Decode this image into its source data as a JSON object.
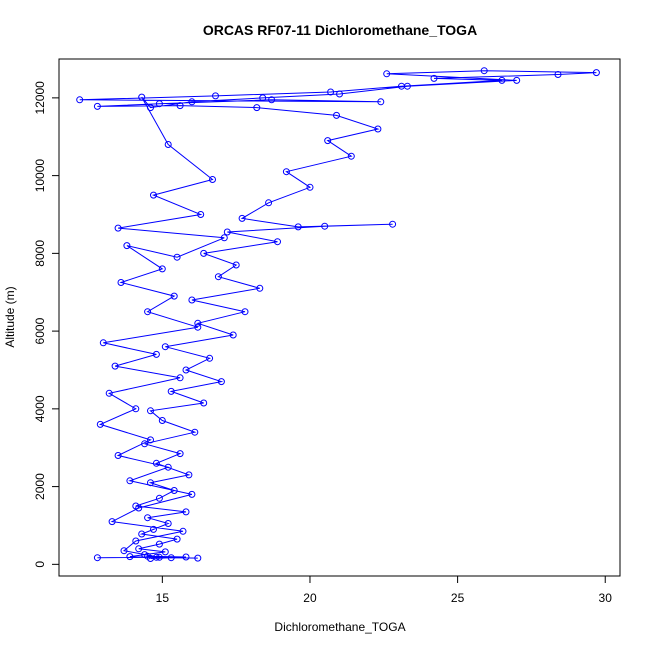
{
  "chart_data": {
    "type": "scatter",
    "title": "ORCAS RF07-11 Dichloromethane_TOGA",
    "xlabel": "Dichloromethane_TOGA",
    "ylabel": "Altitude (m)",
    "xlim": [
      11.5,
      30.5
    ],
    "ylim": [
      -300,
      13000
    ],
    "xticks": [
      15,
      20,
      25,
      30
    ],
    "yticks": [
      0,
      2000,
      4000,
      6000,
      8000,
      10000,
      12000
    ],
    "grid": false,
    "legend": "none",
    "marker": "open-circle",
    "connected": true,
    "color": "#0000ff",
    "series": [
      {
        "name": "Dichloromethane_TOGA",
        "points": [
          [
            14.6,
            150
          ],
          [
            15.3,
            170
          ],
          [
            16.2,
            160
          ],
          [
            14.8,
            180
          ],
          [
            13.9,
            200
          ],
          [
            14.4,
            250
          ],
          [
            15.1,
            320
          ],
          [
            14.2,
            400
          ],
          [
            14.9,
            520
          ],
          [
            15.5,
            650
          ],
          [
            14.3,
            780
          ],
          [
            14.7,
            900
          ],
          [
            15.2,
            1050
          ],
          [
            14.5,
            1200
          ],
          [
            15.8,
            1350
          ],
          [
            14.1,
            1500
          ],
          [
            14.9,
            1700
          ],
          [
            15.4,
            1900
          ],
          [
            14.6,
            2100
          ],
          [
            15.9,
            2300
          ],
          [
            14.8,
            2600
          ],
          [
            15.6,
            2850
          ],
          [
            14.4,
            3100
          ],
          [
            16.1,
            3400
          ],
          [
            15.0,
            3700
          ],
          [
            14.6,
            3950
          ],
          [
            16.4,
            4150
          ],
          [
            15.3,
            4450
          ],
          [
            17.0,
            4700
          ],
          [
            15.8,
            5000
          ],
          [
            16.6,
            5300
          ],
          [
            15.1,
            5600
          ],
          [
            17.4,
            5900
          ],
          [
            16.2,
            6200
          ],
          [
            17.8,
            6500
          ],
          [
            16.0,
            6800
          ],
          [
            18.3,
            7100
          ],
          [
            16.9,
            7400
          ],
          [
            17.5,
            7700
          ],
          [
            16.4,
            8000
          ],
          [
            18.9,
            8300
          ],
          [
            17.2,
            8550
          ],
          [
            20.5,
            8700
          ],
          [
            22.8,
            8750
          ],
          [
            19.6,
            8680
          ],
          [
            17.7,
            8900
          ],
          [
            18.6,
            9300
          ],
          [
            20.0,
            9700
          ],
          [
            19.2,
            10100
          ],
          [
            21.4,
            10500
          ],
          [
            20.6,
            10900
          ],
          [
            22.3,
            11200
          ],
          [
            20.9,
            11550
          ],
          [
            18.2,
            11750
          ],
          [
            15.6,
            11800
          ],
          [
            12.8,
            11780
          ],
          [
            14.9,
            11850
          ],
          [
            18.7,
            11950
          ],
          [
            22.4,
            11900
          ],
          [
            12.2,
            11950
          ],
          [
            16.8,
            12050
          ],
          [
            20.7,
            12150
          ],
          [
            23.1,
            12300
          ],
          [
            26.5,
            12450
          ],
          [
            24.2,
            12500
          ],
          [
            28.4,
            12600
          ],
          [
            29.7,
            12650
          ],
          [
            25.9,
            12700
          ],
          [
            22.6,
            12620
          ],
          [
            27.0,
            12450
          ],
          [
            23.3,
            12300
          ],
          [
            21.0,
            12100
          ],
          [
            18.4,
            12000
          ],
          [
            16.0,
            11900
          ],
          [
            14.6,
            11750
          ],
          [
            14.3,
            12020
          ],
          [
            15.2,
            10800
          ],
          [
            16.7,
            9900
          ],
          [
            14.7,
            9500
          ],
          [
            16.3,
            9000
          ],
          [
            13.5,
            8650
          ],
          [
            17.1,
            8400
          ],
          [
            15.5,
            7900
          ],
          [
            13.8,
            8200
          ],
          [
            15.0,
            7600
          ],
          [
            13.6,
            7250
          ],
          [
            15.4,
            6900
          ],
          [
            14.5,
            6500
          ],
          [
            16.2,
            6100
          ],
          [
            13.0,
            5700
          ],
          [
            14.8,
            5400
          ],
          [
            13.4,
            5100
          ],
          [
            15.6,
            4800
          ],
          [
            13.2,
            4400
          ],
          [
            14.1,
            4000
          ],
          [
            12.9,
            3600
          ],
          [
            14.6,
            3200
          ],
          [
            13.5,
            2800
          ],
          [
            15.2,
            2500
          ],
          [
            13.9,
            2150
          ],
          [
            16.0,
            1800
          ],
          [
            14.2,
            1450
          ],
          [
            13.3,
            1100
          ],
          [
            15.7,
            850
          ],
          [
            14.1,
            600
          ],
          [
            13.7,
            350
          ],
          [
            14.9,
            180
          ],
          [
            12.8,
            170
          ],
          [
            15.8,
            190
          ],
          [
            14.5,
            210
          ]
        ]
      }
    ]
  }
}
